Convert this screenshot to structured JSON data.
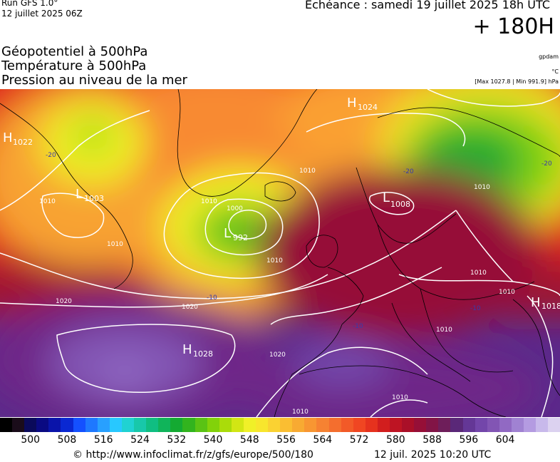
{
  "header": {
    "run_title": "Run GFS 1.0°",
    "run_date": "12 juillet 2025 06Z",
    "forecast_time": "Echéance : samedi 19 juillet 2025 18h UTC",
    "forecast_hour": "+ 180H"
  },
  "layers": [
    "Géopotentiel à 500hPa",
    "Température à 500hPa",
    "Pression au niveau de la mer"
  ],
  "units": {
    "geopotential": "gpdam",
    "temperature": "°C",
    "pressure": "[Max 1027.8 | Min 991.9] hPa"
  },
  "map": {
    "pressure_centers": [
      {
        "type": "H",
        "value": "1022"
      },
      {
        "type": "L",
        "value": "1003"
      },
      {
        "type": "L",
        "value": "992"
      },
      {
        "type": "H",
        "value": "1024"
      },
      {
        "type": "L",
        "value": "1008"
      },
      {
        "type": "H",
        "value": "1028"
      },
      {
        "type": "H",
        "value": "1018"
      }
    ],
    "isobar_labels": [
      "1010",
      "1010",
      "1000",
      "1010",
      "1010",
      "1010",
      "1020",
      "1020",
      "1020",
      "1010",
      "1010",
      "1010",
      "1010",
      "1010",
      "1010"
    ],
    "isotherm_labels": [
      "-20",
      "-20",
      "-20",
      "-10",
      "-10",
      "-10"
    ]
  },
  "scale": {
    "colors": [
      "#000000",
      "#1a0c1a",
      "#0a0a5a",
      "#0a0a82",
      "#0a14aa",
      "#0a28d2",
      "#1450ff",
      "#1e78ff",
      "#28a0ff",
      "#28c8ff",
      "#20d2d2",
      "#18c8aa",
      "#10be82",
      "#10b45a",
      "#14aa32",
      "#32b41e",
      "#5ac314",
      "#82d20a",
      "#aadc0a",
      "#d2e614",
      "#f0f028",
      "#f8e62d",
      "#fad232",
      "#fabe32",
      "#f8aa32",
      "#f89632",
      "#f68232",
      "#f46e2e",
      "#f25a28",
      "#f04622",
      "#e6321e",
      "#d21e1e",
      "#be1423",
      "#aa0f28",
      "#960f37",
      "#821446",
      "#6e1e5a",
      "#5a2878",
      "#643796",
      "#7346aa",
      "#8255b4",
      "#9169c3",
      "#a082d2",
      "#b49be1",
      "#c8b9eb",
      "#dcd2f0"
    ],
    "ticks": [
      "500",
      "508",
      "516",
      "524",
      "532",
      "540",
      "548",
      "556",
      "564",
      "572",
      "580",
      "588",
      "596",
      "604"
    ]
  },
  "footer": {
    "url": "© http://www.infoclimat.fr/z/gfs/europe/500/180",
    "generated": "12 juil. 2025 10:20 UTC"
  }
}
